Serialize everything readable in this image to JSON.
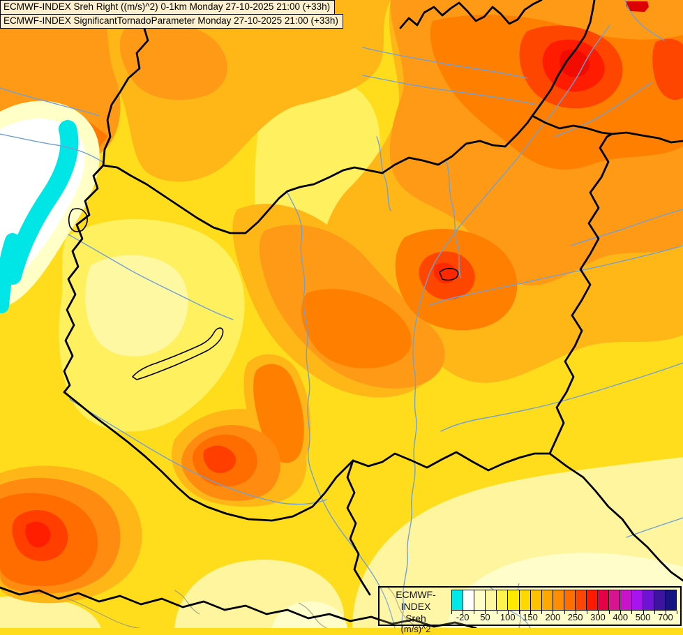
{
  "header": {
    "line1": "ECMWF-INDEX Sreh Right ((m/s)^2) 0-1km Monday 27-10-2025 21:00 (+33h)",
    "line2": "ECMWF-INDEX SignificantTornadoParameter Monday 27-10-2025 21:00 (+33h)"
  },
  "legend": {
    "title": "ECMWF-INDEX",
    "parameter": "Sreh",
    "unit": "(m/s)^2",
    "tick_labels": [
      "-20",
      "50",
      "100",
      "150",
      "200",
      "250",
      "300",
      "400",
      "500",
      "700"
    ],
    "colors": [
      "#00E8E8",
      "#FFFFFF",
      "#FFFFC8",
      "#FFF8A0",
      "#FFF34D",
      "#FFEA00",
      "#FFD800",
      "#FFC100",
      "#FFA900",
      "#FF8E00",
      "#FF6F00",
      "#FF4600",
      "#FF1900",
      "#E80045",
      "#D81490",
      "#C814C8",
      "#A814F0",
      "#6E14D2",
      "#3C14A0",
      "#161482"
    ]
  },
  "map_colors": {
    "lowest_cyan": "#00E8E8",
    "base_yellow": "#FFDD1C",
    "pale_yellow": "#FFF59E",
    "ivory": "#FFFDC9",
    "orange": "#FF9A17",
    "deep_orange": "#FF8000",
    "red": "#FF1C00",
    "max_red_core": "#F20C00",
    "dark_red_spot": "#DC0000",
    "river_blue": "#6FA0D6",
    "border_black": "#000000",
    "contour_gray": "#9A9A78"
  }
}
